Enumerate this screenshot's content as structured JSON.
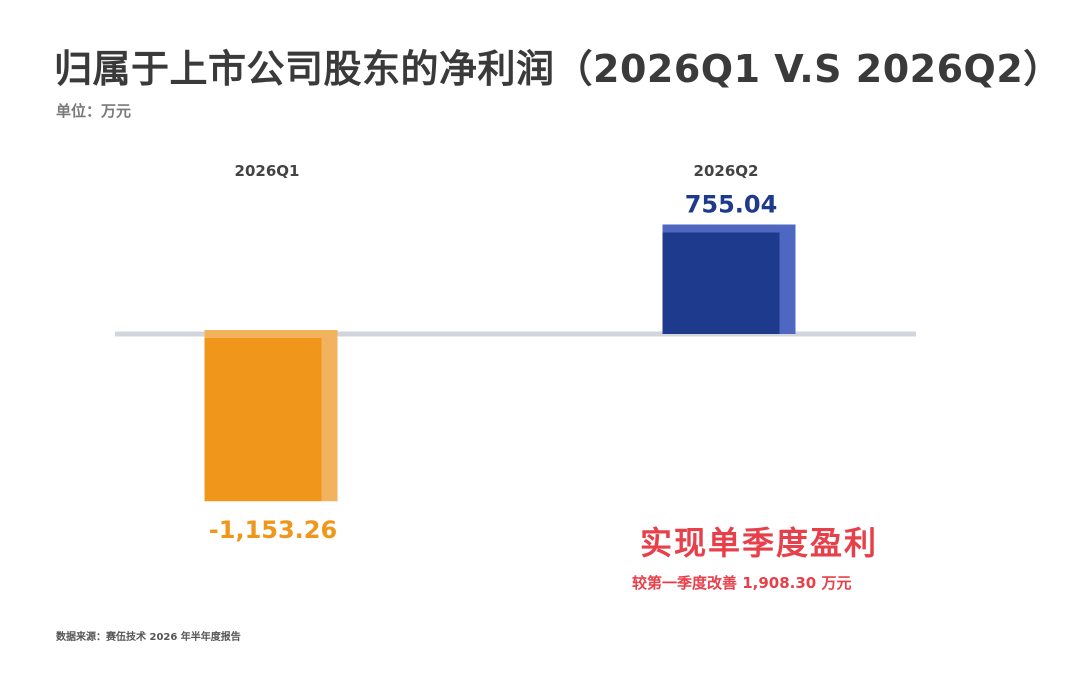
{
  "title": "归属于上市公司股东的净利润（2026Q1 V.S 2026Q2）",
  "unit": "单位：万元",
  "callout": {
    "headline": "实现单季度盈利",
    "detail": "较第一季度改善 1,908.30 万元"
  },
  "source": "数据来源：赛伍技术 2026 年半年度报告",
  "colors": {
    "q1_bar": "#f0961a",
    "q1_bar_side": "#f2b35e",
    "q2_bar": "#1e3a8c",
    "q2_bar_side": "#4e67c0",
    "baseline": "#d2d6dc",
    "callout": "#e8404a"
  },
  "chart_data": {
    "type": "bar",
    "categories": [
      "2026Q1",
      "2026Q2"
    ],
    "values": [
      -1153.26,
      755.04
    ],
    "value_labels": [
      "-1,153.26",
      "755.04"
    ],
    "ylabel": "万元",
    "grid": false
  }
}
